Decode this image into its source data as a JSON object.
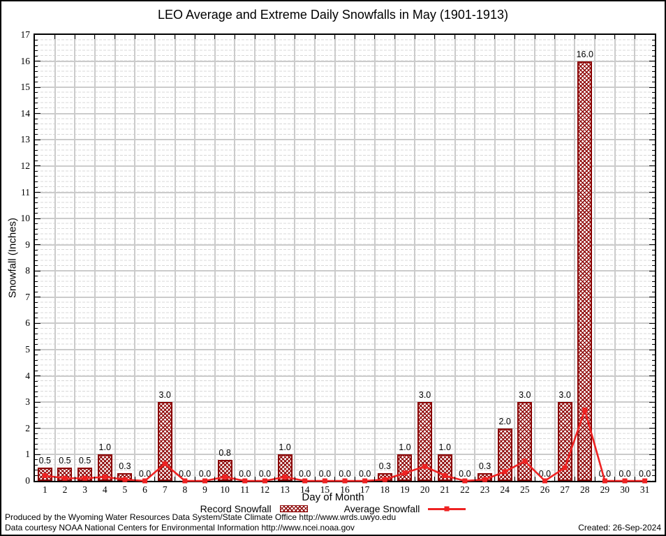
{
  "chart_data": {
    "type": "bar",
    "title": "LEO Average and Extreme Daily Snowfalls in May (1901-1913)",
    "xlabel": "Day of Month",
    "ylabel": "Snowfall (Inches)",
    "ylim": [
      0,
      17
    ],
    "yticks": [
      0,
      1,
      2,
      3,
      4,
      5,
      6,
      7,
      8,
      9,
      10,
      11,
      12,
      13,
      14,
      15,
      16,
      17
    ],
    "categories": [
      "1",
      "2",
      "3",
      "4",
      "5",
      "6",
      "7",
      "8",
      "9",
      "10",
      "11",
      "12",
      "13",
      "14",
      "15",
      "16",
      "17",
      "18",
      "19",
      "20",
      "21",
      "22",
      "23",
      "24",
      "25",
      "26",
      "27",
      "28",
      "29",
      "30",
      "31"
    ],
    "grid": true,
    "legend_position": "bottom",
    "series": [
      {
        "name": "Record Snowfall",
        "type": "bar",
        "color": "#8b0000",
        "values": [
          0.5,
          0.5,
          0.5,
          1.0,
          0.3,
          0.0,
          3.0,
          0.0,
          0.0,
          0.8,
          0.0,
          0.0,
          1.0,
          0.0,
          0.0,
          0.0,
          0.0,
          0.3,
          1.0,
          3.0,
          1.0,
          0.0,
          0.3,
          2.0,
          3.0,
          0.0,
          3.0,
          16.0,
          0.0,
          0.0,
          0.0
        ],
        "value_labels": [
          "0.5",
          "0.5",
          "0.5",
          "1.0",
          "0.3",
          "0.0",
          "3.0",
          "0.0",
          "0.0",
          "0.8",
          "0.0",
          "0.0",
          "1.0",
          "0.0",
          "0.0",
          "0.0",
          "0.0",
          "0.3",
          "1.0",
          "3.0",
          "1.0",
          "0.0",
          "0.3",
          "2.0",
          "3.0",
          "0.0",
          "3.0",
          "16.0",
          "0.0",
          "0.0",
          "0.0"
        ]
      },
      {
        "name": "Average Snowfall",
        "type": "line",
        "color": "#ee2222",
        "values": [
          0.2,
          0.1,
          0.1,
          0.15,
          0.05,
          0.0,
          0.65,
          0.0,
          0.0,
          0.15,
          0.0,
          0.0,
          0.15,
          0.0,
          0.0,
          0.0,
          0.0,
          0.05,
          0.3,
          0.55,
          0.2,
          0.0,
          0.05,
          0.35,
          0.75,
          0.0,
          0.5,
          2.7,
          0.0,
          0.0,
          0.0
        ]
      }
    ]
  },
  "footer": {
    "line1": "Produced by the Wyoming Water Resources Data System/State Climate Office http://www.wrds.uwyo.edu",
    "line2": "Data courtesy NOAA National Centers for Environmental Information http://www.ncei.noaa.gov",
    "created": "Created: 26-Sep-2024"
  }
}
